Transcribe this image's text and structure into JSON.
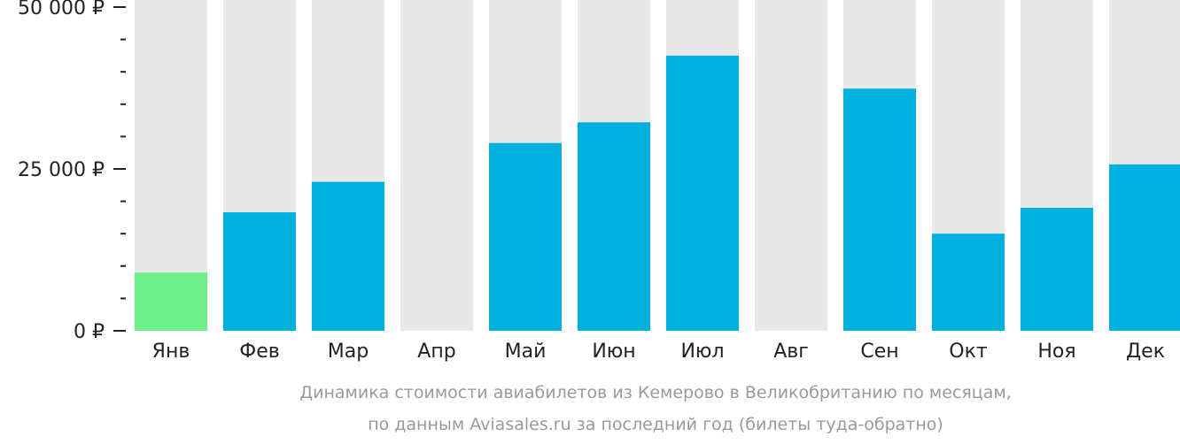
{
  "chart_data": {
    "type": "bar",
    "categories": [
      "Янв",
      "Фев",
      "Мар",
      "Апр",
      "Май",
      "Июн",
      "Июл",
      "Авг",
      "Сен",
      "Окт",
      "Ноя",
      "Дек"
    ],
    "values": [
      9000,
      18300,
      23000,
      null,
      29000,
      32200,
      42500,
      null,
      37400,
      15000,
      19000,
      25700
    ],
    "ylim": [
      0,
      50000
    ],
    "y_tick_labels": [
      "50 000 ₽",
      "25 000 ₽",
      "0 ₽"
    ],
    "y_tick_values": [
      50000,
      25000,
      0
    ],
    "y_minor_step": 5000,
    "grid": false,
    "legend": "none",
    "highlight_index": 0,
    "colors": {
      "bar": "#00b0de",
      "highlight": "#6cf08c",
      "background_bar": "#e8e8e8",
      "axis": "#222222",
      "caption": "#9a9a9a"
    },
    "caption_lines": [
      "Динамика стоимости авиабилетов из Кемерово в Великобританию по месяцам,",
      "по данным Aviasales.ru за последний год (билеты туда-обратно)"
    ]
  }
}
